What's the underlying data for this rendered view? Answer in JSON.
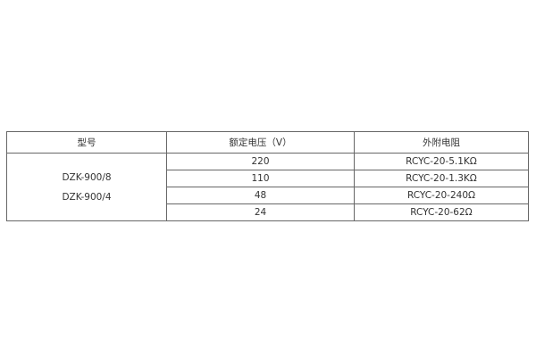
{
  "table": {
    "headers": [
      "型号",
      "额定电压（V）",
      "外附电阻"
    ],
    "models": [
      "DZK-900/8",
      "DZK-900/4"
    ],
    "rows": [
      {
        "voltage": "220",
        "resistor": "RCYC-20-5.1KΩ"
      },
      {
        "voltage": "110",
        "resistor": "RCYC-20-1.3KΩ"
      },
      {
        "voltage": "48",
        "resistor": "RCYC-20-240Ω"
      },
      {
        "voltage": "24",
        "resistor": "RCYC-20-62Ω"
      }
    ]
  }
}
